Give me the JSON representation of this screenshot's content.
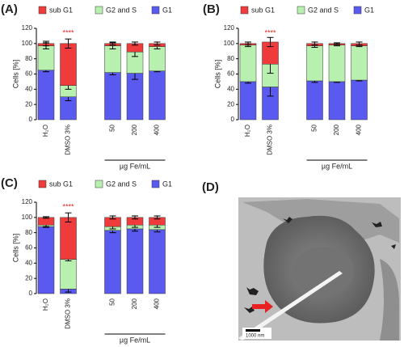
{
  "chart_data": [
    {
      "type": "stacked_bar",
      "label": "(A)",
      "y_label": "Cells [%]",
      "categories": [
        "H₂O",
        "DMSO 3%",
        null,
        "50",
        "200",
        "400"
      ],
      "group_label": "µg Fe/mL",
      "annotations": [
        {
          "text": "****",
          "category": "DMSO 3%"
        }
      ],
      "ylim": [
        0,
        120
      ],
      "yticks": [
        0,
        20,
        40,
        60,
        80,
        100,
        120
      ],
      "series": [
        {
          "name": "sub G1",
          "color": "#ef3b3b",
          "values": [
            3,
            55,
            null,
            3,
            11,
            4
          ],
          "errors": [
            3,
            6,
            null,
            2,
            2,
            2
          ]
        },
        {
          "name": "G2 and S",
          "color": "#b8f0b0",
          "values": [
            32,
            15,
            null,
            35,
            28,
            32
          ],
          "errors": [
            4,
            5,
            null,
            4,
            6,
            3
          ]
        },
        {
          "name": "G1",
          "color": "#5a5af0",
          "values": [
            65,
            30,
            null,
            62,
            61,
            64
          ],
          "errors": [
            2,
            5,
            null,
            3,
            8,
            1
          ]
        }
      ]
    },
    {
      "type": "stacked_bar",
      "label": "(B)",
      "y_label": "Cells [%]",
      "categories": [
        "H₂O",
        "DMSO 3%",
        null,
        "50",
        "200",
        "400"
      ],
      "group_label": "µg Fe/mL",
      "annotations": [
        {
          "text": "****",
          "category": "DMSO 3%"
        }
      ],
      "ylim": [
        0,
        120
      ],
      "yticks": [
        0,
        20,
        40,
        60,
        80,
        100,
        120
      ],
      "series": [
        {
          "name": "sub G1",
          "color": "#ef3b3b",
          "values": [
            2,
            29,
            null,
            3,
            2,
            3
          ],
          "errors": [
            2,
            6,
            null,
            2,
            1,
            2
          ]
        },
        {
          "name": "G2 and S",
          "color": "#b8f0b0",
          "values": [
            48,
            30,
            null,
            46,
            48,
            45
          ],
          "errors": [
            2,
            12,
            null,
            2,
            1,
            1
          ]
        },
        {
          "name": "G1",
          "color": "#5a5af0",
          "values": [
            50,
            43,
            null,
            51,
            50,
            52
          ],
          "errors": [
            2,
            12,
            null,
            2,
            1,
            1
          ]
        }
      ]
    },
    {
      "type": "stacked_bar",
      "label": "(C)",
      "y_label": "Cells [%]",
      "categories": [
        "H₂O",
        "DMSO 3%",
        null,
        "50",
        "200",
        "400"
      ],
      "group_label": "µg Fe/mL",
      "annotations": [
        {
          "text": "****",
          "category": "DMSO 3%"
        }
      ],
      "ylim": [
        0,
        120
      ],
      "yticks": [
        0,
        20,
        40,
        60,
        80,
        100,
        120
      ],
      "series": [
        {
          "name": "sub G1",
          "color": "#ef3b3b",
          "values": [
            10,
            55,
            null,
            12,
            10,
            10
          ],
          "errors": [
            1,
            6,
            null,
            2,
            2,
            2
          ]
        },
        {
          "name": "G2 and S",
          "color": "#b8f0b0",
          "values": [
            2,
            39,
            null,
            5,
            5,
            6
          ],
          "errors": [
            2,
            2,
            null,
            3,
            3,
            3
          ]
        },
        {
          "name": "G1",
          "color": "#5a5af0",
          "values": [
            88,
            6,
            null,
            83,
            85,
            84
          ],
          "errors": [
            1,
            4,
            null,
            3,
            3,
            3
          ]
        }
      ]
    }
  ],
  "image": {
    "label": "(D)",
    "scale_bar": "1000 nm"
  }
}
